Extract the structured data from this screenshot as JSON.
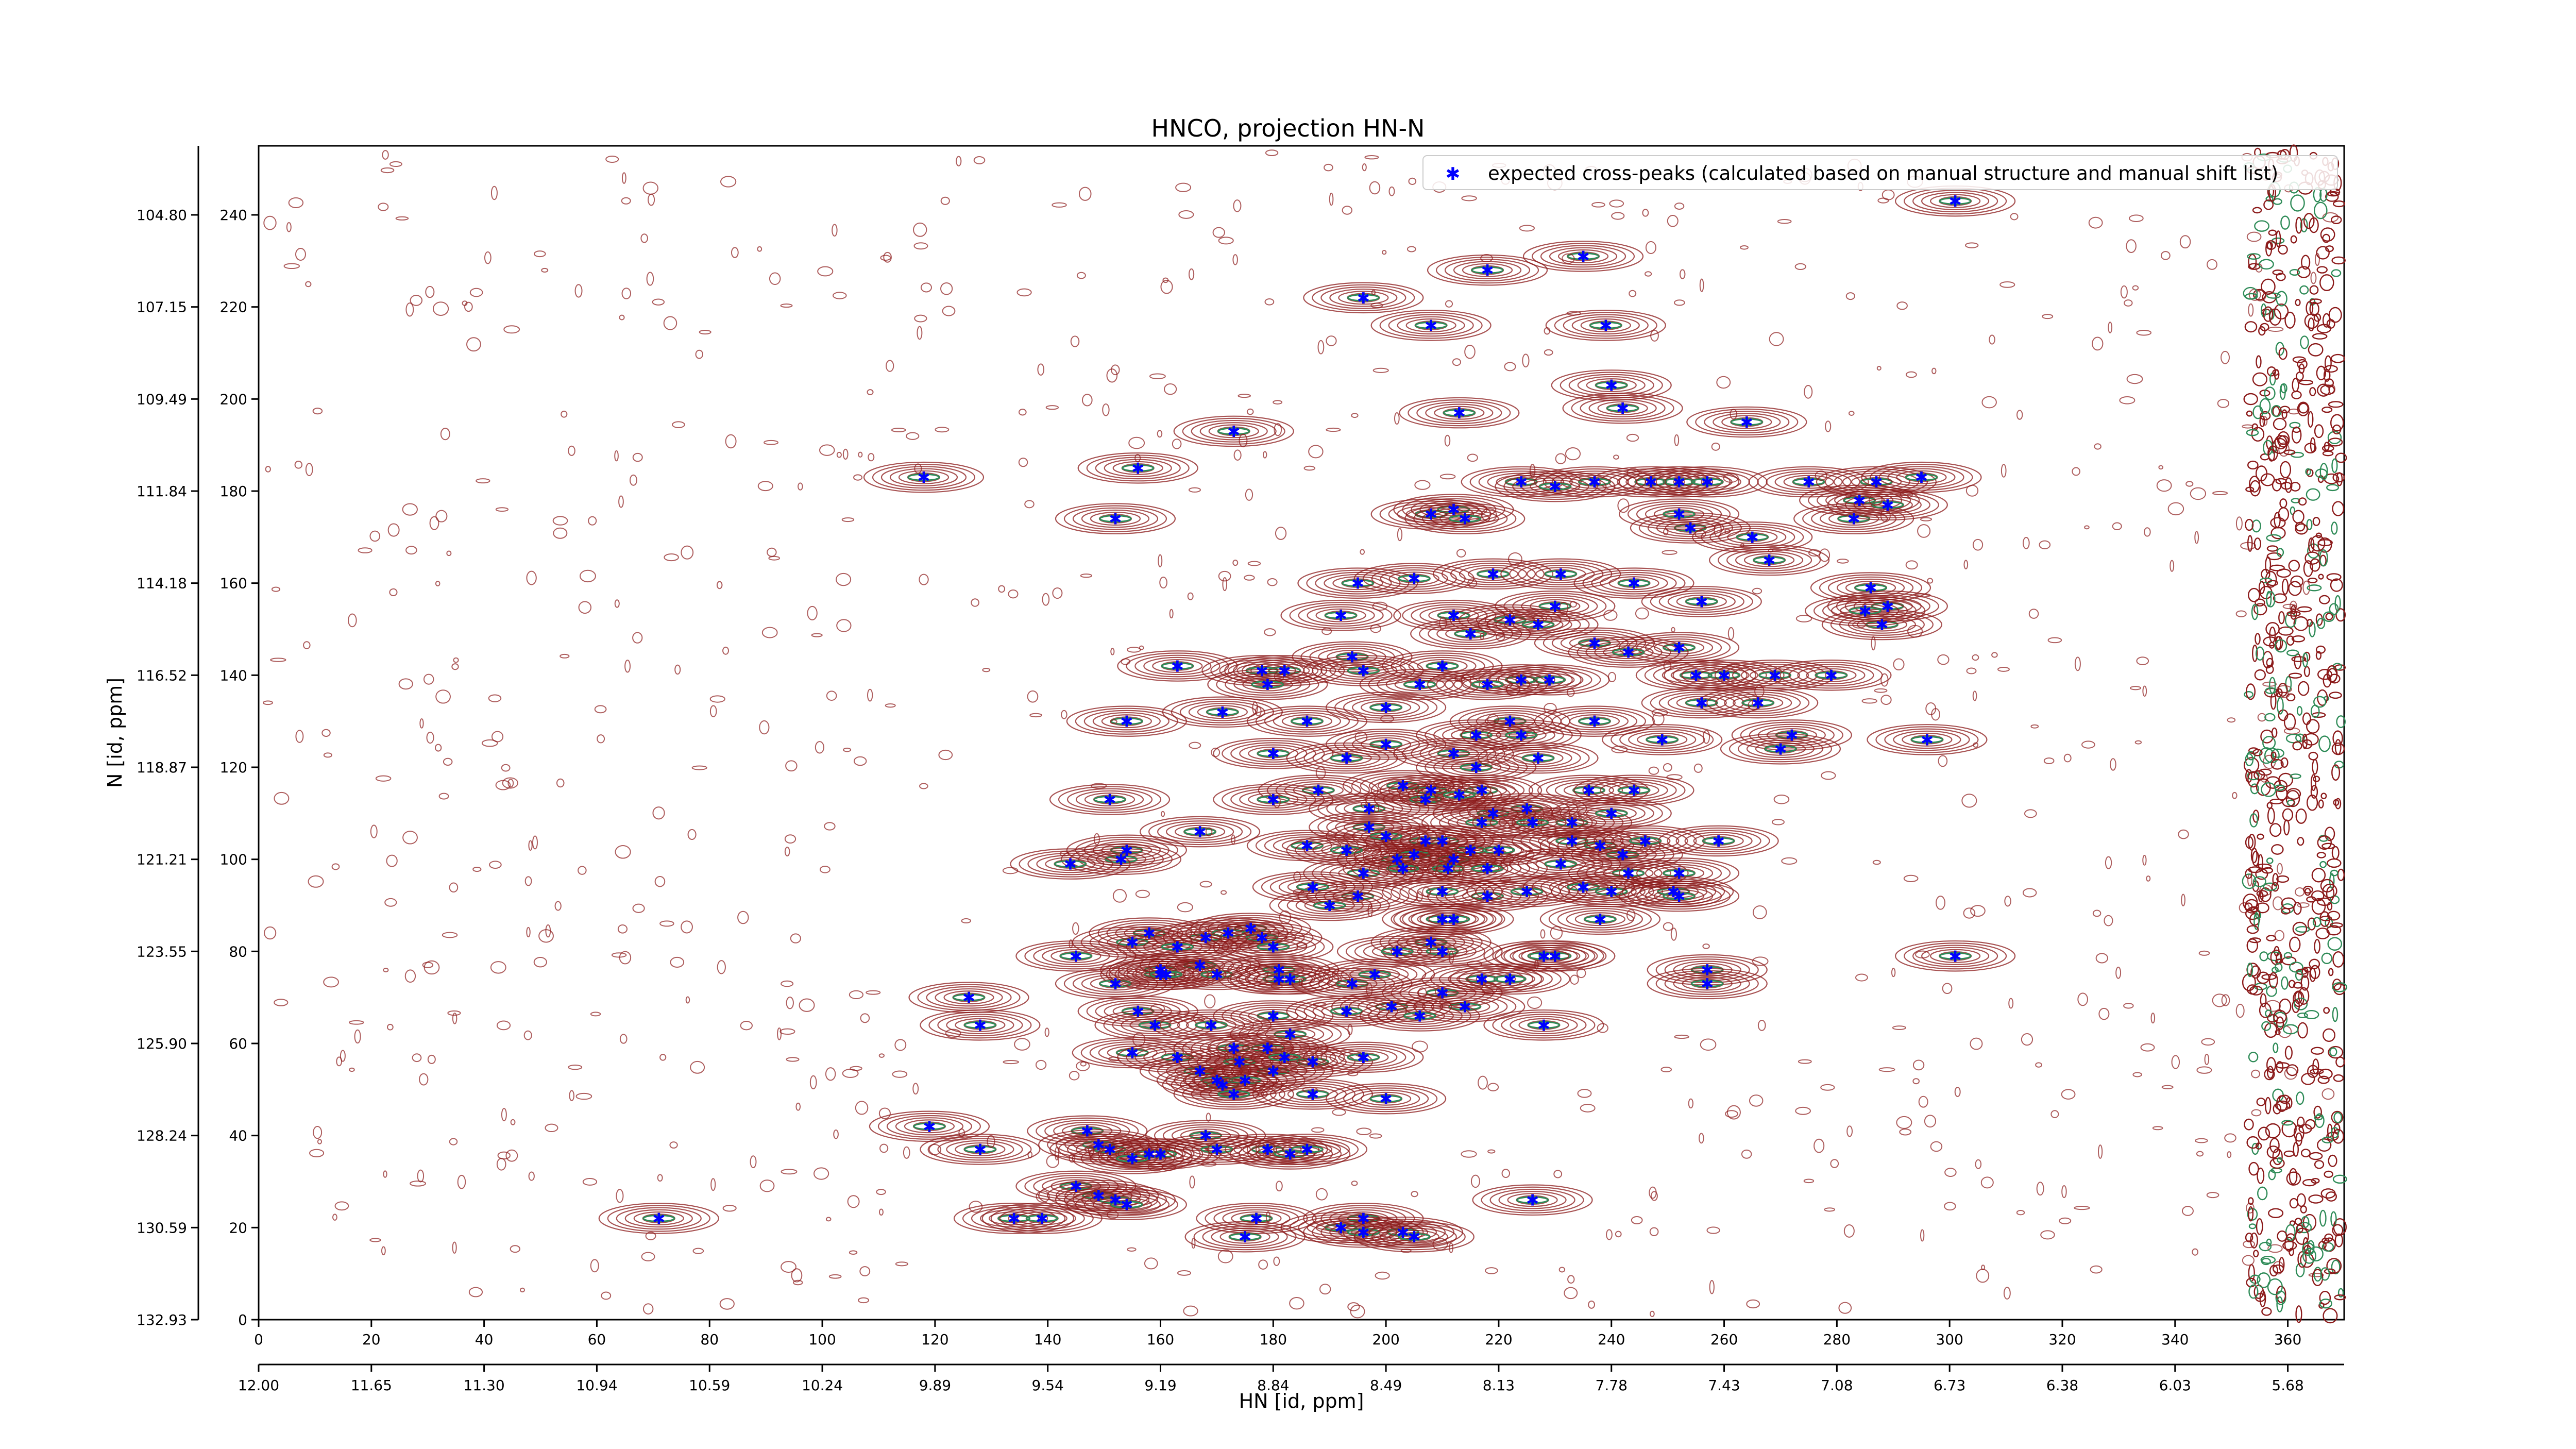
{
  "chart_data": {
    "type": "scatter",
    "title": "HNCO, projection HN-N",
    "xlabel": "HN [id, ppm]",
    "ylabel": "N [id, ppm]",
    "xlim": [
      0,
      370
    ],
    "ylim": [
      0,
      255
    ],
    "x_ticks_index": [
      "0",
      "20",
      "40",
      "60",
      "80",
      "100",
      "120",
      "140",
      "160",
      "180",
      "200",
      "220",
      "240",
      "260",
      "280",
      "300",
      "320",
      "340",
      "360"
    ],
    "x_ticks_ppm": [
      "12.00",
      "11.65",
      "11.30",
      "10.94",
      "10.59",
      "10.24",
      "9.89",
      "9.54",
      "9.19",
      "8.84",
      "8.49",
      "8.13",
      "7.78",
      "7.43",
      "7.08",
      "6.73",
      "6.38",
      "6.03",
      "5.68"
    ],
    "y_ticks_index": [
      "0",
      "20",
      "40",
      "60",
      "80",
      "100",
      "120",
      "140",
      "160",
      "180",
      "200",
      "220",
      "240"
    ],
    "y_ticks_ppm": [
      "132.93",
      "130.59",
      "128.24",
      "125.90",
      "123.55",
      "121.21",
      "118.87",
      "116.52",
      "114.18",
      "111.84",
      "109.49",
      "107.15",
      "104.80"
    ],
    "legend": {
      "position": "top-right",
      "label": "expected cross-peaks (calculated based on manual structure and manual shift list)"
    },
    "colors": {
      "peaks": "#0000ff",
      "contour_pos": "#8b1a1a",
      "contour_neg": "#2e8b57"
    },
    "series": [
      {
        "name": "expected cross-peaks (calculated based on manual structure and manual shift list)",
        "points": [
          [
            301,
            243
          ],
          [
            235,
            231
          ],
          [
            218,
            228
          ],
          [
            196,
            222
          ],
          [
            239,
            216
          ],
          [
            208,
            216
          ],
          [
            240,
            203
          ],
          [
            213,
            197
          ],
          [
            242,
            198
          ],
          [
            173,
            193
          ],
          [
            156,
            185
          ],
          [
            264,
            195
          ],
          [
            118,
            183
          ],
          [
            247,
            182
          ],
          [
            252,
            182
          ],
          [
            257,
            182
          ],
          [
            224,
            182
          ],
          [
            237,
            182
          ],
          [
            230,
            181
          ],
          [
            275,
            182
          ],
          [
            287,
            182
          ],
          [
            284,
            178
          ],
          [
            295,
            183
          ],
          [
            152,
            174
          ],
          [
            208,
            175
          ],
          [
            212,
            176
          ],
          [
            214,
            174
          ],
          [
            254,
            172
          ],
          [
            252,
            175
          ],
          [
            265,
            170
          ],
          [
            283,
            174
          ],
          [
            289,
            177
          ],
          [
            268,
            165
          ],
          [
            195,
            160
          ],
          [
            205,
            161
          ],
          [
            219,
            162
          ],
          [
            231,
            162
          ],
          [
            244,
            160
          ],
          [
            192,
            153
          ],
          [
            212,
            153
          ],
          [
            222,
            152
          ],
          [
            230,
            155
          ],
          [
            256,
            156
          ],
          [
            288,
            151
          ],
          [
            286,
            159
          ],
          [
            289,
            155
          ],
          [
            285,
            154
          ],
          [
            215,
            149
          ],
          [
            227,
            151
          ],
          [
            237,
            147
          ],
          [
            252,
            146
          ],
          [
            243,
            145
          ],
          [
            194,
            144
          ],
          [
            163,
            142
          ],
          [
            182,
            141
          ],
          [
            178,
            141
          ],
          [
            196,
            141
          ],
          [
            210,
            142
          ],
          [
            224,
            139
          ],
          [
            229,
            139
          ],
          [
            255,
            140
          ],
          [
            260,
            140
          ],
          [
            269,
            140
          ],
          [
            279,
            140
          ],
          [
            179,
            138
          ],
          [
            206,
            138
          ],
          [
            218,
            138
          ],
          [
            256,
            134
          ],
          [
            266,
            134
          ],
          [
            171,
            132
          ],
          [
            154,
            130
          ],
          [
            200,
            133
          ],
          [
            186,
            130
          ],
          [
            222,
            130
          ],
          [
            237,
            130
          ],
          [
            216,
            127
          ],
          [
            224,
            127
          ],
          [
            249,
            126
          ],
          [
            272,
            127
          ],
          [
            296,
            126
          ],
          [
            270,
            124
          ],
          [
            180,
            123
          ],
          [
            200,
            125
          ],
          [
            193,
            122
          ],
          [
            212,
            123
          ],
          [
            216,
            120
          ],
          [
            227,
            122
          ],
          [
            217,
            115
          ],
          [
            203,
            116
          ],
          [
            208,
            115
          ],
          [
            236,
            115
          ],
          [
            244,
            115
          ],
          [
            188,
            115
          ],
          [
            225,
            111
          ],
          [
            219,
            110
          ],
          [
            151,
            113
          ],
          [
            197,
            111
          ],
          [
            180,
            113
          ],
          [
            207,
            113
          ],
          [
            213,
            114
          ],
          [
            217,
            108
          ],
          [
            197,
            107
          ],
          [
            207,
            104
          ],
          [
            233,
            104
          ],
          [
            238,
            103
          ],
          [
            242,
            101
          ],
          [
            246,
            104
          ],
          [
            259,
            104
          ],
          [
            167,
            106
          ],
          [
            154,
            102
          ],
          [
            153,
            100
          ],
          [
            186,
            103
          ],
          [
            200,
            105
          ],
          [
            202,
            100
          ],
          [
            210,
            104
          ],
          [
            215,
            102
          ],
          [
            233,
            108
          ],
          [
            226,
            108
          ],
          [
            240,
            110
          ],
          [
            193,
            102
          ],
          [
            205,
            101
          ],
          [
            212,
            100
          ],
          [
            220,
            102
          ],
          [
            144,
            99
          ],
          [
            196,
            97
          ],
          [
            203,
            98
          ],
          [
            211,
            98
          ],
          [
            218,
            98
          ],
          [
            231,
            99
          ],
          [
            243,
            97
          ],
          [
            252,
            97
          ],
          [
            195,
            92
          ],
          [
            187,
            94
          ],
          [
            190,
            90
          ],
          [
            218,
            92
          ],
          [
            210,
            93
          ],
          [
            225,
            93
          ],
          [
            235,
            94
          ],
          [
            240,
            93
          ],
          [
            251,
            93
          ],
          [
            252,
            92
          ],
          [
            210,
            87
          ],
          [
            176,
            85
          ],
          [
            212,
            87
          ],
          [
            238,
            87
          ],
          [
            158,
            84
          ],
          [
            168,
            83
          ],
          [
            172,
            84
          ],
          [
            178,
            83
          ],
          [
            155,
            82
          ],
          [
            163,
            81
          ],
          [
            180,
            81
          ],
          [
            208,
            82
          ],
          [
            210,
            80
          ],
          [
            230,
            79
          ],
          [
            257,
            76
          ],
          [
            228,
            79
          ],
          [
            202,
            80
          ],
          [
            145,
            79
          ],
          [
            160,
            76
          ],
          [
            167,
            77
          ],
          [
            160,
            75
          ],
          [
            170,
            75
          ],
          [
            181,
            74
          ],
          [
            152,
            73
          ],
          [
            161,
            75
          ],
          [
            181,
            76
          ],
          [
            183,
            74
          ],
          [
            217,
            74
          ],
          [
            222,
            74
          ],
          [
            257,
            73
          ],
          [
            301,
            79
          ],
          [
            194,
            73
          ],
          [
            198,
            75
          ],
          [
            210,
            71
          ],
          [
            214,
            68
          ],
          [
            201,
            68
          ],
          [
            126,
            70
          ],
          [
            156,
            67
          ],
          [
            180,
            66
          ],
          [
            128,
            64
          ],
          [
            159,
            64
          ],
          [
            169,
            64
          ],
          [
            183,
            62
          ],
          [
            228,
            64
          ],
          [
            193,
            67
          ],
          [
            206,
            66
          ],
          [
            155,
            58
          ],
          [
            163,
            57
          ],
          [
            173,
            59
          ],
          [
            179,
            59
          ],
          [
            187,
            56
          ],
          [
            196,
            57
          ],
          [
            167,
            54
          ],
          [
            174,
            56
          ],
          [
            180,
            54
          ],
          [
            182,
            57
          ],
          [
            170,
            52
          ],
          [
            171,
            51
          ],
          [
            175,
            52
          ],
          [
            173,
            49
          ],
          [
            187,
            49
          ],
          [
            200,
            48
          ],
          [
            119,
            42
          ],
          [
            147,
            41
          ],
          [
            149,
            38
          ],
          [
            168,
            40
          ],
          [
            128,
            37
          ],
          [
            151,
            37
          ],
          [
            158,
            36
          ],
          [
            160,
            36
          ],
          [
            155,
            35
          ],
          [
            170,
            37
          ],
          [
            179,
            37
          ],
          [
            183,
            36
          ],
          [
            186,
            37
          ],
          [
            145,
            29
          ],
          [
            149,
            27
          ],
          [
            152,
            26
          ],
          [
            154,
            25
          ],
          [
            134,
            22
          ],
          [
            139,
            22
          ],
          [
            177,
            22
          ],
          [
            196,
            22
          ],
          [
            226,
            26
          ],
          [
            192,
            20
          ],
          [
            203,
            19
          ],
          [
            71,
            22
          ],
          [
            175,
            18
          ],
          [
            196,
            19
          ],
          [
            205,
            18
          ]
        ]
      }
    ]
  }
}
